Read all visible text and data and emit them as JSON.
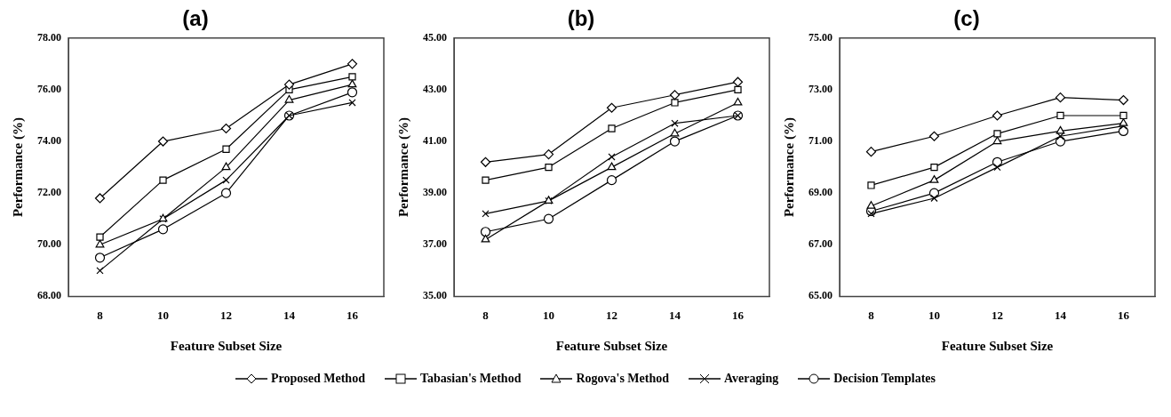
{
  "chart_data": [
    {
      "type": "line",
      "title": "(a)",
      "xlabel": "Feature Subset Size",
      "ylabel": "Performance (%)",
      "categories": [
        "8",
        "10",
        "12",
        "14",
        "16"
      ],
      "ylim": [
        68,
        78
      ],
      "yticks": [
        {
          "value": 68,
          "label": "68.00"
        },
        {
          "value": 70,
          "label": "70.00"
        },
        {
          "value": 72,
          "label": "72.00"
        },
        {
          "value": 74,
          "label": "74.00"
        },
        {
          "value": 76,
          "label": "76.00"
        },
        {
          "value": 78,
          "label": "78.00"
        }
      ],
      "grid": false,
      "legend": "bottom",
      "line_style": "solid",
      "series": [
        {
          "name": "Proposed Method",
          "color": "#000000",
          "marker": "diamond",
          "values": [
            71.8,
            74.0,
            74.5,
            76.2,
            77.0
          ]
        },
        {
          "name": "Tabasian's Method",
          "color": "#000000",
          "marker": "square",
          "values": [
            70.3,
            72.5,
            73.7,
            76.0,
            76.5
          ]
        },
        {
          "name": "Rogova's Method",
          "color": "#000000",
          "marker": "triangle",
          "values": [
            70.0,
            71.0,
            73.0,
            75.6,
            76.2
          ]
        },
        {
          "name": "Averaging",
          "color": "#000000",
          "marker": "cross",
          "values": [
            69.0,
            71.0,
            72.5,
            75.0,
            75.5
          ]
        },
        {
          "name": "Decision Templates",
          "color": "#000000",
          "marker": "circle",
          "values": [
            69.5,
            70.6,
            72.0,
            75.0,
            75.9
          ]
        }
      ]
    },
    {
      "type": "line",
      "title": "(b)",
      "xlabel": "Feature Subset Size",
      "ylabel": "Performance (%)",
      "categories": [
        "8",
        "10",
        "12",
        "14",
        "16"
      ],
      "ylim": [
        35,
        45
      ],
      "yticks": [
        {
          "value": 35,
          "label": "35.00"
        },
        {
          "value": 37,
          "label": "37.00"
        },
        {
          "value": 39,
          "label": "39.00"
        },
        {
          "value": 41,
          "label": "41.00"
        },
        {
          "value": 43,
          "label": "43.00"
        },
        {
          "value": 45,
          "label": "45.00"
        }
      ],
      "grid": false,
      "line_style": "solid",
      "series": [
        {
          "color": "#000000",
          "marker": "diamond",
          "values": [
            40.2,
            40.5,
            42.3,
            42.8,
            43.3
          ]
        },
        {
          "color": "#000000",
          "marker": "square",
          "values": [
            39.5,
            40.0,
            41.5,
            42.5,
            43.0
          ]
        },
        {
          "color": "#000000",
          "marker": "triangle",
          "values": [
            37.2,
            38.7,
            40.0,
            41.3,
            42.5
          ]
        },
        {
          "color": "#000000",
          "marker": "cross",
          "values": [
            38.2,
            38.7,
            40.4,
            41.7,
            42.0
          ]
        },
        {
          "color": "#000000",
          "marker": "circle",
          "values": [
            37.5,
            38.0,
            39.5,
            41.0,
            42.0
          ]
        }
      ]
    },
    {
      "type": "line",
      "title": "(c)",
      "xlabel": "Feature Subset Size",
      "ylabel": "Performance (%)",
      "categories": [
        "8",
        "10",
        "12",
        "14",
        "16"
      ],
      "ylim": [
        65,
        75
      ],
      "yticks": [
        {
          "value": 65,
          "label": "65.00"
        },
        {
          "value": 67,
          "label": "67.00"
        },
        {
          "value": 69,
          "label": "69.00"
        },
        {
          "value": 71,
          "label": "71.00"
        },
        {
          "value": 73,
          "label": "73.00"
        },
        {
          "value": 75,
          "label": "75.00"
        }
      ],
      "grid": false,
      "line_style": "solid",
      "series": [
        {
          "color": "#000000",
          "marker": "diamond",
          "values": [
            70.6,
            71.2,
            72.0,
            72.7,
            72.6
          ]
        },
        {
          "color": "#000000",
          "marker": "square",
          "values": [
            69.3,
            70.0,
            71.3,
            72.0,
            72.0
          ]
        },
        {
          "color": "#000000",
          "marker": "triangle",
          "values": [
            68.5,
            69.5,
            71.0,
            71.4,
            71.7
          ]
        },
        {
          "color": "#000000",
          "marker": "cross",
          "values": [
            68.2,
            68.8,
            70.0,
            71.2,
            71.6
          ]
        },
        {
          "color": "#000000",
          "marker": "circle",
          "values": [
            68.3,
            69.0,
            70.2,
            71.0,
            71.4
          ]
        }
      ]
    }
  ]
}
